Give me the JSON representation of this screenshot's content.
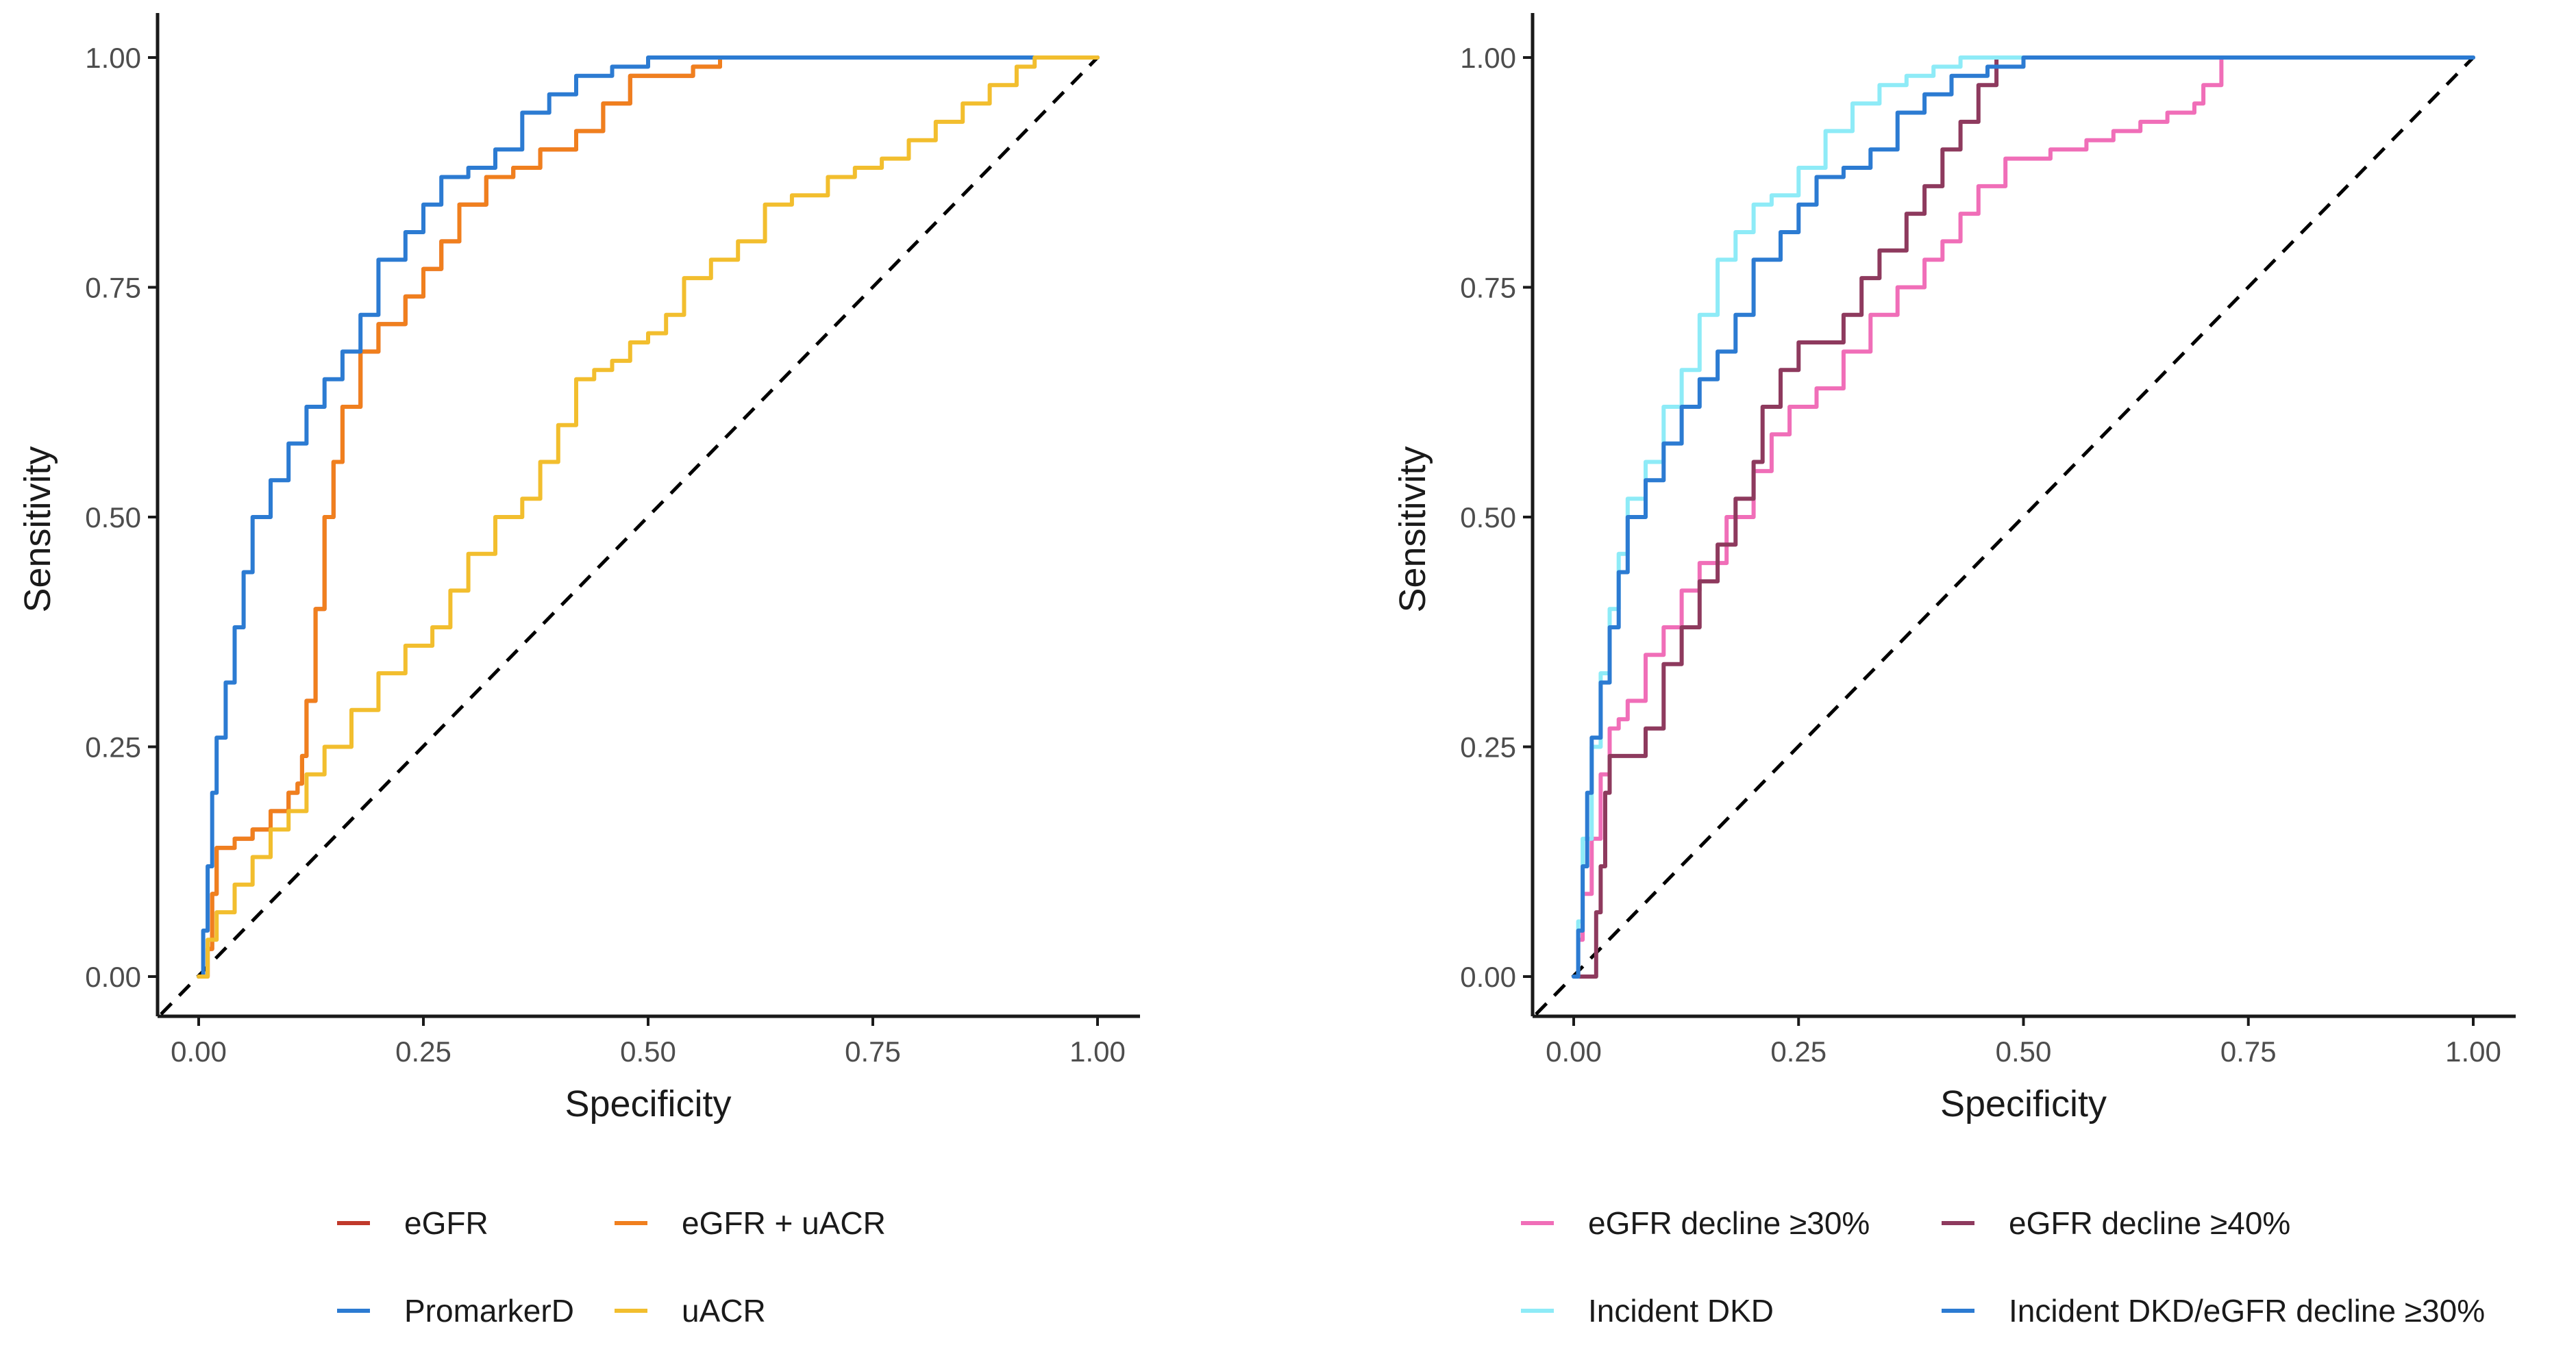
{
  "chart_data": [
    {
      "type": "line",
      "xlabel": "Specificity",
      "ylabel": "Sensitivity",
      "xlim": [
        0,
        1
      ],
      "ylim": [
        0,
        1
      ],
      "x_ticks": [
        "0.00",
        "0.25",
        "0.50",
        "0.75",
        "1.00"
      ],
      "y_ticks": [
        "0.00",
        "0.25",
        "0.50",
        "0.75",
        "1.00"
      ],
      "grid": false,
      "legend_position": "bottom",
      "reference_line": {
        "style": "dashed",
        "color": "#000000",
        "points": [
          [
            0,
            0
          ],
          [
            1,
            1
          ]
        ]
      },
      "series": [
        {
          "name": "eGFR",
          "color": "#C0392B",
          "points": [
            [
              0,
              0
            ],
            [
              0.01,
              0.03
            ],
            [
              0.015,
              0.09
            ],
            [
              0.02,
              0.14
            ],
            [
              0.04,
              0.15
            ],
            [
              0.06,
              0.16
            ],
            [
              0.08,
              0.18
            ],
            [
              0.1,
              0.2
            ],
            [
              0.11,
              0.21
            ],
            [
              0.115,
              0.24
            ],
            [
              0.12,
              0.3
            ],
            [
              0.13,
              0.4
            ],
            [
              0.14,
              0.5
            ],
            [
              0.15,
              0.56
            ],
            [
              0.16,
              0.62
            ],
            [
              0.18,
              0.68
            ],
            [
              0.2,
              0.71
            ],
            [
              0.23,
              0.74
            ],
            [
              0.25,
              0.77
            ],
            [
              0.27,
              0.8
            ],
            [
              0.29,
              0.84
            ],
            [
              0.32,
              0.87
            ],
            [
              0.35,
              0.88
            ],
            [
              0.38,
              0.9
            ],
            [
              0.42,
              0.92
            ],
            [
              0.45,
              0.95
            ],
            [
              0.48,
              0.98
            ],
            [
              0.52,
              0.98
            ],
            [
              0.55,
              0.99
            ],
            [
              0.58,
              1.0
            ],
            [
              0.7,
              1.0
            ],
            [
              1.0,
              1.0
            ]
          ]
        },
        {
          "name": "eGFR + uACR",
          "color": "#F07F1E",
          "points": [
            [
              0,
              0
            ],
            [
              0.01,
              0.03
            ],
            [
              0.015,
              0.09
            ],
            [
              0.02,
              0.14
            ],
            [
              0.04,
              0.15
            ],
            [
              0.06,
              0.16
            ],
            [
              0.08,
              0.18
            ],
            [
              0.1,
              0.2
            ],
            [
              0.11,
              0.21
            ],
            [
              0.115,
              0.24
            ],
            [
              0.12,
              0.3
            ],
            [
              0.13,
              0.4
            ],
            [
              0.14,
              0.5
            ],
            [
              0.15,
              0.56
            ],
            [
              0.16,
              0.62
            ],
            [
              0.18,
              0.68
            ],
            [
              0.2,
              0.71
            ],
            [
              0.23,
              0.74
            ],
            [
              0.25,
              0.77
            ],
            [
              0.27,
              0.8
            ],
            [
              0.29,
              0.84
            ],
            [
              0.32,
              0.87
            ],
            [
              0.35,
              0.88
            ],
            [
              0.38,
              0.9
            ],
            [
              0.42,
              0.92
            ],
            [
              0.45,
              0.95
            ],
            [
              0.48,
              0.98
            ],
            [
              0.52,
              0.98
            ],
            [
              0.55,
              0.99
            ],
            [
              0.58,
              1.0
            ],
            [
              0.7,
              1.0
            ],
            [
              1.0,
              1.0
            ]
          ]
        },
        {
          "name": "PromarkerD",
          "color": "#2C7BD2",
          "points": [
            [
              0,
              0
            ],
            [
              0.005,
              0.05
            ],
            [
              0.01,
              0.12
            ],
            [
              0.015,
              0.2
            ],
            [
              0.02,
              0.26
            ],
            [
              0.03,
              0.32
            ],
            [
              0.04,
              0.38
            ],
            [
              0.05,
              0.44
            ],
            [
              0.06,
              0.5
            ],
            [
              0.08,
              0.54
            ],
            [
              0.1,
              0.58
            ],
            [
              0.12,
              0.62
            ],
            [
              0.14,
              0.65
            ],
            [
              0.16,
              0.68
            ],
            [
              0.18,
              0.72
            ],
            [
              0.2,
              0.78
            ],
            [
              0.23,
              0.81
            ],
            [
              0.25,
              0.84
            ],
            [
              0.27,
              0.87
            ],
            [
              0.3,
              0.88
            ],
            [
              0.33,
              0.9
            ],
            [
              0.36,
              0.94
            ],
            [
              0.39,
              0.96
            ],
            [
              0.42,
              0.98
            ],
            [
              0.46,
              0.99
            ],
            [
              0.5,
              1.0
            ],
            [
              0.7,
              1.0
            ],
            [
              1.0,
              1.0
            ]
          ]
        },
        {
          "name": "uACR",
          "color": "#F2BE2E",
          "points": [
            [
              0,
              0
            ],
            [
              0.01,
              0.04
            ],
            [
              0.02,
              0.07
            ],
            [
              0.04,
              0.1
            ],
            [
              0.06,
              0.13
            ],
            [
              0.08,
              0.16
            ],
            [
              0.1,
              0.18
            ],
            [
              0.12,
              0.22
            ],
            [
              0.14,
              0.25
            ],
            [
              0.17,
              0.29
            ],
            [
              0.2,
              0.33
            ],
            [
              0.23,
              0.36
            ],
            [
              0.26,
              0.38
            ],
            [
              0.28,
              0.42
            ],
            [
              0.3,
              0.46
            ],
            [
              0.33,
              0.5
            ],
            [
              0.36,
              0.52
            ],
            [
              0.38,
              0.56
            ],
            [
              0.4,
              0.6
            ],
            [
              0.42,
              0.65
            ],
            [
              0.44,
              0.66
            ],
            [
              0.46,
              0.67
            ],
            [
              0.48,
              0.69
            ],
            [
              0.5,
              0.7
            ],
            [
              0.52,
              0.72
            ],
            [
              0.54,
              0.76
            ],
            [
              0.57,
              0.78
            ],
            [
              0.6,
              0.8
            ],
            [
              0.63,
              0.84
            ],
            [
              0.66,
              0.85
            ],
            [
              0.7,
              0.87
            ],
            [
              0.73,
              0.88
            ],
            [
              0.76,
              0.89
            ],
            [
              0.79,
              0.91
            ],
            [
              0.82,
              0.93
            ],
            [
              0.85,
              0.95
            ],
            [
              0.88,
              0.97
            ],
            [
              0.91,
              0.99
            ],
            [
              0.93,
              1.0
            ],
            [
              1.0,
              1.0
            ]
          ]
        }
      ]
    },
    {
      "type": "line",
      "xlabel": "Specificity",
      "ylabel": "Sensitivity",
      "xlim": [
        0,
        1
      ],
      "ylim": [
        0,
        1
      ],
      "x_ticks": [
        "0.00",
        "0.25",
        "0.50",
        "0.75",
        "1.00"
      ],
      "y_ticks": [
        "0.00",
        "0.25",
        "0.50",
        "0.75",
        "1.00"
      ],
      "grid": false,
      "legend_position": "bottom",
      "reference_line": {
        "style": "dashed",
        "color": "#000000",
        "points": [
          [
            0,
            0
          ],
          [
            1,
            1
          ]
        ]
      },
      "series": [
        {
          "name": "eGFR decline ≥30%",
          "color": "#F06EB8",
          "points": [
            [
              0,
              0
            ],
            [
              0.005,
              0.04
            ],
            [
              0.01,
              0.09
            ],
            [
              0.02,
              0.15
            ],
            [
              0.03,
              0.22
            ],
            [
              0.04,
              0.27
            ],
            [
              0.05,
              0.28
            ],
            [
              0.06,
              0.3
            ],
            [
              0.08,
              0.35
            ],
            [
              0.1,
              0.38
            ],
            [
              0.12,
              0.42
            ],
            [
              0.14,
              0.45
            ],
            [
              0.17,
              0.5
            ],
            [
              0.2,
              0.55
            ],
            [
              0.22,
              0.59
            ],
            [
              0.24,
              0.62
            ],
            [
              0.27,
              0.64
            ],
            [
              0.3,
              0.68
            ],
            [
              0.33,
              0.72
            ],
            [
              0.36,
              0.75
            ],
            [
              0.39,
              0.78
            ],
            [
              0.41,
              0.8
            ],
            [
              0.43,
              0.83
            ],
            [
              0.45,
              0.86
            ],
            [
              0.48,
              0.89
            ],
            [
              0.5,
              0.89
            ],
            [
              0.53,
              0.9
            ],
            [
              0.57,
              0.91
            ],
            [
              0.6,
              0.92
            ],
            [
              0.63,
              0.93
            ],
            [
              0.66,
              0.94
            ],
            [
              0.69,
              0.95
            ],
            [
              0.7,
              0.97
            ],
            [
              0.72,
              1.0
            ],
            [
              1.0,
              1.0
            ]
          ]
        },
        {
          "name": "eGFR decline ≥40%",
          "color": "#8E3A5E",
          "points": [
            [
              0,
              0
            ],
            [
              0.01,
              0.0
            ],
            [
              0.02,
              0.0
            ],
            [
              0.025,
              0.07
            ],
            [
              0.03,
              0.12
            ],
            [
              0.035,
              0.2
            ],
            [
              0.04,
              0.24
            ],
            [
              0.06,
              0.24
            ],
            [
              0.08,
              0.27
            ],
            [
              0.1,
              0.34
            ],
            [
              0.12,
              0.38
            ],
            [
              0.14,
              0.43
            ],
            [
              0.16,
              0.47
            ],
            [
              0.18,
              0.52
            ],
            [
              0.2,
              0.56
            ],
            [
              0.21,
              0.62
            ],
            [
              0.23,
              0.66
            ],
            [
              0.25,
              0.69
            ],
            [
              0.28,
              0.69
            ],
            [
              0.3,
              0.72
            ],
            [
              0.32,
              0.76
            ],
            [
              0.34,
              0.79
            ],
            [
              0.37,
              0.83
            ],
            [
              0.39,
              0.86
            ],
            [
              0.41,
              0.9
            ],
            [
              0.43,
              0.93
            ],
            [
              0.45,
              0.97
            ],
            [
              0.47,
              1.0
            ],
            [
              1.0,
              1.0
            ]
          ]
        },
        {
          "name": "Incident DKD",
          "color": "#8EEBF7",
          "points": [
            [
              0,
              0
            ],
            [
              0.005,
              0.06
            ],
            [
              0.01,
              0.15
            ],
            [
              0.02,
              0.25
            ],
            [
              0.03,
              0.33
            ],
            [
              0.04,
              0.4
            ],
            [
              0.05,
              0.46
            ],
            [
              0.06,
              0.52
            ],
            [
              0.08,
              0.56
            ],
            [
              0.1,
              0.62
            ],
            [
              0.12,
              0.66
            ],
            [
              0.14,
              0.72
            ],
            [
              0.16,
              0.78
            ],
            [
              0.18,
              0.81
            ],
            [
              0.2,
              0.84
            ],
            [
              0.22,
              0.85
            ],
            [
              0.25,
              0.88
            ],
            [
              0.28,
              0.92
            ],
            [
              0.31,
              0.95
            ],
            [
              0.34,
              0.97
            ],
            [
              0.37,
              0.98
            ],
            [
              0.4,
              0.99
            ],
            [
              0.43,
              1.0
            ],
            [
              1.0,
              1.0
            ]
          ]
        },
        {
          "name": "Incident DKD/eGFR decline ≥30%",
          "color": "#2C7BD2",
          "points": [
            [
              0,
              0
            ],
            [
              0.005,
              0.05
            ],
            [
              0.01,
              0.12
            ],
            [
              0.015,
              0.2
            ],
            [
              0.02,
              0.26
            ],
            [
              0.03,
              0.32
            ],
            [
              0.04,
              0.38
            ],
            [
              0.05,
              0.44
            ],
            [
              0.06,
              0.5
            ],
            [
              0.08,
              0.54
            ],
            [
              0.1,
              0.58
            ],
            [
              0.12,
              0.62
            ],
            [
              0.14,
              0.65
            ],
            [
              0.16,
              0.68
            ],
            [
              0.18,
              0.72
            ],
            [
              0.2,
              0.78
            ],
            [
              0.23,
              0.81
            ],
            [
              0.25,
              0.84
            ],
            [
              0.27,
              0.87
            ],
            [
              0.3,
              0.88
            ],
            [
              0.33,
              0.9
            ],
            [
              0.36,
              0.94
            ],
            [
              0.39,
              0.96
            ],
            [
              0.42,
              0.98
            ],
            [
              0.46,
              0.99
            ],
            [
              0.5,
              1.0
            ],
            [
              0.7,
              1.0
            ],
            [
              1.0,
              1.0
            ]
          ]
        }
      ]
    }
  ]
}
